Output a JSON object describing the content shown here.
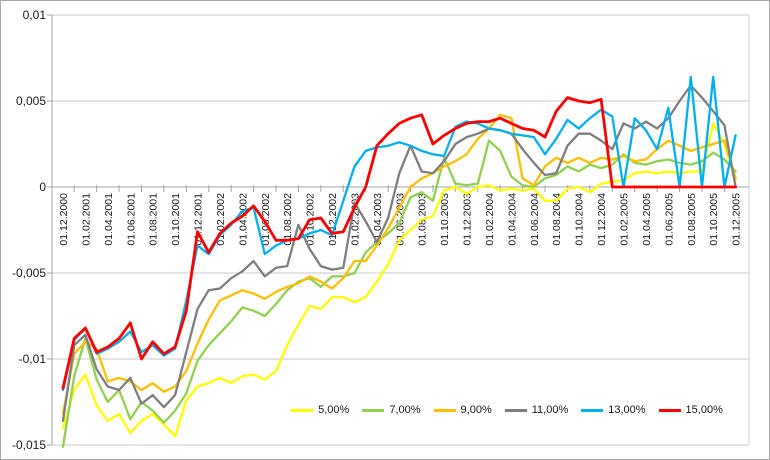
{
  "chart_data": {
    "type": "line",
    "title": "",
    "xlabel": "",
    "ylabel": "",
    "x_start": "01.12.2000",
    "x_interval": "monthly",
    "points_count": 61,
    "x_tick_labels": [
      "01.12.2000",
      "01.02.2001",
      "01.04.2001",
      "01.06.2001",
      "01.08.2001",
      "01.10.2001",
      "01.12.2001",
      "01.02.2002",
      "01.04.2002",
      "01.06.2002",
      "01.08.2002",
      "01.10.2002",
      "01.12.2002",
      "01.02.2003",
      "01.04.2003",
      "01.06.2003",
      "01.08.2003",
      "01.10.2003",
      "01.12.2003",
      "01.02.2004",
      "01.04.2004",
      "01.06.2004",
      "01.08.2004",
      "01.10.2004",
      "01.12.2004",
      "01.02.2005",
      "01.04.2005",
      "01.06.2005",
      "01.08.2005",
      "01.10.2005",
      "01.12.2005"
    ],
    "y_tick_labels": [
      "0,01",
      "0,005",
      "0",
      "-0,005",
      "-0,01",
      "-0,015"
    ],
    "y_tick_values": [
      0.01,
      0.005,
      0,
      -0.005,
      -0.01,
      -0.015
    ],
    "ylim": [
      -0.015,
      0.01
    ],
    "grid": true,
    "legend_position": "bottom",
    "colors": {
      "gridline": "#c9c9c9",
      "axis": "#a6a6a6",
      "plot_border": "#d2d2d2",
      "label_text": "#1a1a1a"
    },
    "series": [
      {
        "name": "5,00%",
        "color": "#FFFF00",
        "width": 2.3,
        "values": [
          -0.014,
          -0.0118,
          -0.0109,
          -0.0127,
          -0.0136,
          -0.0132,
          -0.0143,
          -0.0136,
          -0.0132,
          -0.0138,
          -0.0145,
          -0.0124,
          -0.0116,
          -0.0114,
          -0.0111,
          -0.0114,
          -0.011,
          -0.0109,
          -0.0112,
          -0.0107,
          -0.0092,
          -0.008,
          -0.0069,
          -0.0071,
          -0.0064,
          -0.0064,
          -0.0067,
          -0.0064,
          -0.0055,
          -0.0045,
          -0.0031,
          -0.0025,
          -0.0019,
          -0.0017,
          -0.0002,
          0.0,
          -0.0004,
          0.0,
          0.0001,
          -0.0002,
          -0.0001,
          -0.0002,
          -0.0001,
          -0.0008,
          -0.0008,
          -0.0001,
          0.0,
          -0.0003,
          0.0002,
          0.0003,
          0.0004,
          0.0008,
          0.0009,
          0.0008,
          0.0009,
          0.0008,
          0.0009,
          0.0009,
          0.0037,
          0.0025,
          0.0004
        ]
      },
      {
        "name": "7,00%",
        "color": "#92D050",
        "width": 2.3,
        "values": [
          -0.0151,
          -0.011,
          -0.0088,
          -0.0112,
          -0.0125,
          -0.0118,
          -0.0135,
          -0.0125,
          -0.013,
          -0.0137,
          -0.013,
          -0.012,
          -0.0101,
          -0.0092,
          -0.0085,
          -0.0078,
          -0.007,
          -0.0072,
          -0.0075,
          -0.0068,
          -0.006,
          -0.0055,
          -0.0053,
          -0.0058,
          -0.0052,
          -0.0052,
          -0.005,
          -0.0038,
          -0.0032,
          -0.0027,
          -0.0021,
          -0.0006,
          -0.0003,
          -0.0008,
          0.0017,
          0.0002,
          0.0001,
          0.0002,
          0.0027,
          0.0021,
          0.0006,
          0.0001,
          0.0,
          0.0005,
          0.0007,
          0.0012,
          0.0009,
          0.0013,
          0.0011,
          0.0013,
          0.0019,
          0.0014,
          0.0013,
          0.0015,
          0.0016,
          0.0014,
          0.0013,
          0.0015,
          0.002,
          0.0016,
          0.0009
        ]
      },
      {
        "name": "9,00%",
        "color": "#FFC000",
        "width": 2.3,
        "values": [
          -0.0132,
          -0.0097,
          -0.009,
          -0.0094,
          -0.0113,
          -0.0111,
          -0.0113,
          -0.0118,
          -0.0114,
          -0.0119,
          -0.0116,
          -0.0107,
          -0.0091,
          -0.0077,
          -0.0066,
          -0.0063,
          -0.006,
          -0.0062,
          -0.0065,
          -0.0061,
          -0.0058,
          -0.0056,
          -0.0052,
          -0.0055,
          -0.0059,
          -0.0053,
          -0.0043,
          -0.0043,
          -0.0034,
          -0.0024,
          -0.0012,
          0.0,
          0.0005,
          0.0008,
          0.0012,
          0.0015,
          0.0019,
          0.0028,
          0.0034,
          0.0042,
          0.004,
          0.0005,
          0.0001,
          0.0012,
          0.0017,
          0.0014,
          0.0017,
          0.0014,
          0.0017,
          0.0016,
          0.0018,
          0.0015,
          0.0016,
          0.0022,
          0.0027,
          0.0024,
          0.0021,
          0.0023,
          0.0025,
          0.0027,
          0.0005
        ]
      },
      {
        "name": "11,00%",
        "color": "#7F7F7F",
        "width": 2.3,
        "values": [
          -0.0136,
          -0.0092,
          -0.0086,
          -0.0106,
          -0.0116,
          -0.0118,
          -0.0111,
          -0.0126,
          -0.0121,
          -0.0128,
          -0.0121,
          -0.0096,
          -0.0071,
          -0.006,
          -0.0059,
          -0.0053,
          -0.0049,
          -0.0043,
          -0.0052,
          -0.0047,
          -0.0046,
          -0.0022,
          -0.0036,
          -0.0046,
          -0.0048,
          -0.0047,
          -0.0009,
          -0.002,
          -0.0032,
          -0.0018,
          0.0008,
          0.0024,
          0.0009,
          0.0008,
          0.0015,
          0.0025,
          0.0029,
          0.0031,
          0.0034,
          0.0033,
          0.0031,
          0.0022,
          0.0014,
          0.0007,
          0.0008,
          0.0024,
          0.0031,
          0.0031,
          0.0027,
          0.0022,
          0.0037,
          0.0034,
          0.0038,
          0.0034,
          0.004,
          0.005,
          0.0059,
          0.0052,
          0.0044,
          0.0036,
          0.0
        ]
      },
      {
        "name": "13,00%",
        "color": "#00B0F0",
        "width": 2.3,
        "values": [
          -0.0118,
          -0.0089,
          -0.0082,
          -0.0097,
          -0.0094,
          -0.009,
          -0.0084,
          -0.0096,
          -0.0092,
          -0.0098,
          -0.0094,
          -0.0066,
          -0.0034,
          -0.0039,
          -0.0028,
          -0.0022,
          -0.0014,
          -0.0012,
          -0.0039,
          -0.0034,
          -0.0031,
          -0.003,
          -0.0027,
          -0.0025,
          -0.0028,
          -0.0008,
          0.0012,
          0.0021,
          0.0023,
          0.0024,
          0.0026,
          0.0024,
          0.0021,
          0.0019,
          0.0018,
          0.0035,
          0.0038,
          0.0037,
          0.0034,
          0.0033,
          0.0031,
          0.003,
          0.0029,
          0.0019,
          0.0028,
          0.0039,
          0.0034,
          0.004,
          0.0045,
          0.0041,
          0.0,
          0.004,
          0.0033,
          0.0022,
          0.0046,
          0.0,
          0.0064,
          0.0,
          0.0064,
          0.0,
          0.003
        ]
      },
      {
        "name": "15,00%",
        "color": "#FF0000",
        "width": 2.8,
        "values": [
          -0.0117,
          -0.0088,
          -0.0082,
          -0.0096,
          -0.0093,
          -0.0088,
          -0.0079,
          -0.01,
          -0.009,
          -0.0097,
          -0.0093,
          -0.0072,
          -0.0026,
          -0.0038,
          -0.0027,
          -0.0021,
          -0.0017,
          -0.0011,
          -0.002,
          -0.0031,
          -0.0031,
          -0.003,
          -0.0019,
          -0.0018,
          -0.0027,
          -0.0026,
          -0.0012,
          0.0,
          0.0024,
          0.0031,
          0.0037,
          0.004,
          0.0042,
          0.0025,
          0.003,
          0.0034,
          0.0037,
          0.0038,
          0.0038,
          0.004,
          0.0037,
          0.0034,
          0.0033,
          0.0029,
          0.0044,
          0.0052,
          0.005,
          0.0049,
          0.0051,
          0.0,
          0.0,
          0.0,
          0.0,
          0.0,
          0.0,
          0.0,
          0.0,
          0.0,
          0.0,
          0.0,
          0.0
        ]
      }
    ]
  }
}
